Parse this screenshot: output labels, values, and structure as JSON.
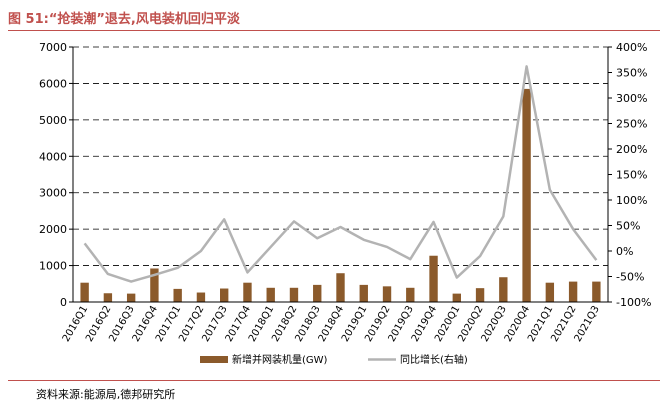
{
  "figure_title": "图 51:“抢装潮”退去,风电装机回归平淡",
  "source_note": "资料来源:能源局,德邦研究所",
  "colors": {
    "bar": "#8B5A2B",
    "line": "#b3b3b3",
    "title": "#c0504d"
  },
  "chart_data": {
    "type": "bar",
    "categories": [
      "2016Q1",
      "2016Q2",
      "2016Q3",
      "2016Q4",
      "2017Q1",
      "2017Q2",
      "2017Q3",
      "2017Q4",
      "2018Q1",
      "2018Q2",
      "2018Q3",
      "2018Q4",
      "2019Q1",
      "2019Q2",
      "2019Q3",
      "2019Q4",
      "2020Q1",
      "2020Q2",
      "2020Q3",
      "2020Q4",
      "2021Q1",
      "2021Q2",
      "2021Q3"
    ],
    "series": [
      {
        "name": "新增并网装机量(GW)",
        "type": "bar",
        "axis": "left",
        "values": [
          530,
          240,
          230,
          920,
          360,
          260,
          370,
          530,
          390,
          390,
          470,
          790,
          470,
          430,
          390,
          1270,
          230,
          380,
          680,
          5850,
          530,
          560,
          560
        ]
      },
      {
        "name": "同比增长(右轴)",
        "type": "line",
        "axis": "right",
        "values": [
          15,
          -45,
          -60,
          -47,
          -33,
          0,
          62,
          -42,
          8,
          58,
          25,
          47,
          22,
          8,
          -16,
          57,
          -52,
          -10,
          68,
          362,
          120,
          43,
          -18
        ]
      }
    ],
    "y_left": {
      "min": 0,
      "max": 7000,
      "ticks": [
        "0",
        "1000",
        "2000",
        "3000",
        "4000",
        "5000",
        "6000",
        "7000"
      ]
    },
    "y_right": {
      "min": -100,
      "max": 400,
      "ticks": [
        "-100%",
        "-50%",
        "0%",
        "50%",
        "100%",
        "150%",
        "200%",
        "250%",
        "300%",
        "350%",
        "400%"
      ]
    },
    "grid": "horizontal-dashed",
    "legend_position": "bottom"
  }
}
